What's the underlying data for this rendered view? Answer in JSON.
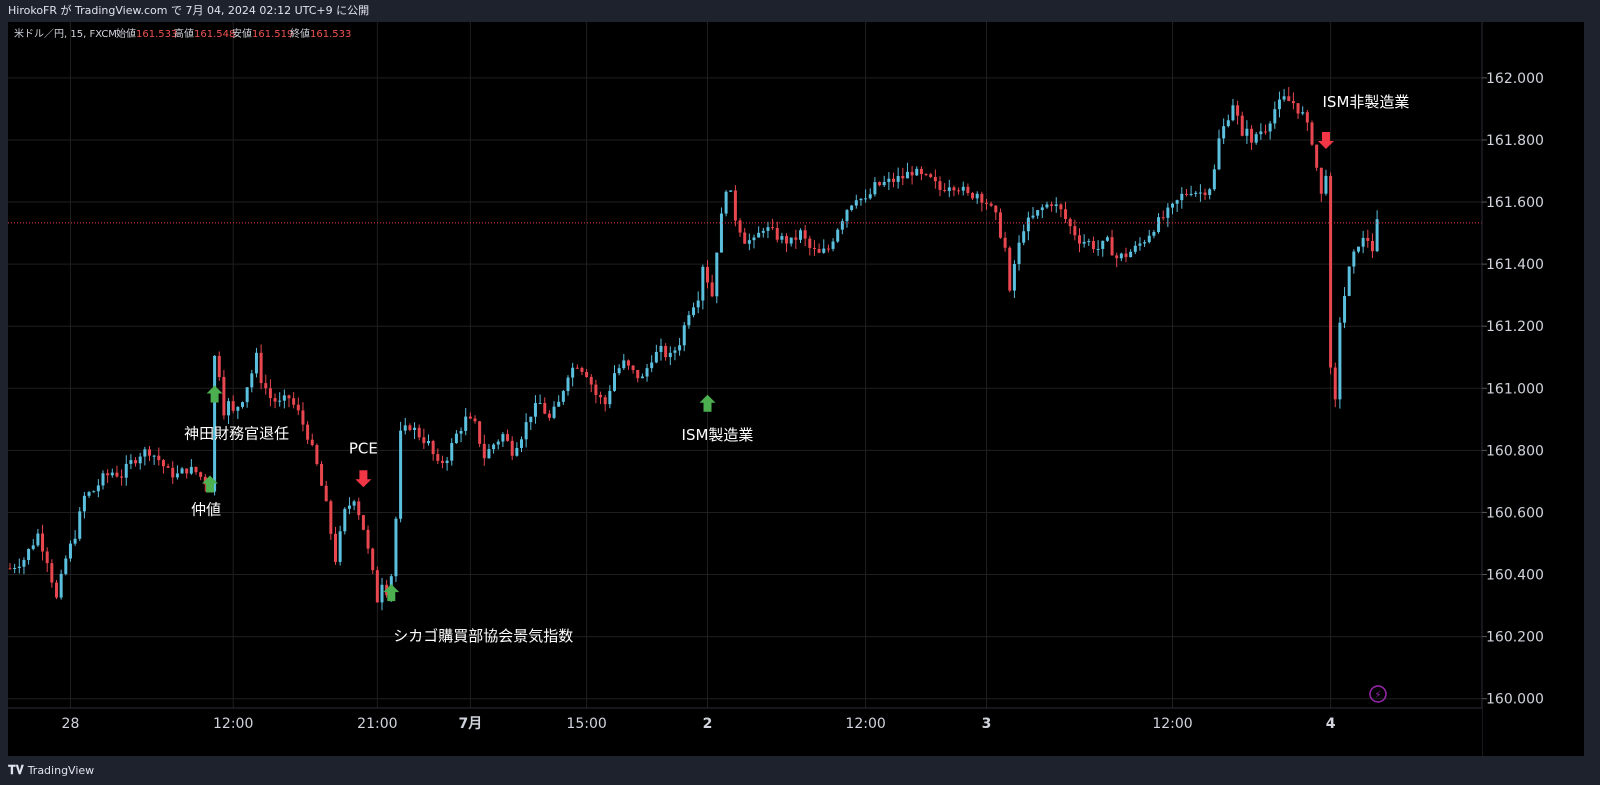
{
  "header": {
    "publish_info": "HirokoFR が TradingView.com で 7月 04, 2024 02:12 UTC+9 に公開"
  },
  "footer": {
    "brand": "TradingView",
    "logo_icon": "tradingview-logo-icon"
  },
  "legend": {
    "symbol": "米ドル／円, 15, FXCM",
    "items": [
      {
        "label": "始値",
        "value": "161.533"
      },
      {
        "label": "高値",
        "value": "161.548"
      },
      {
        "label": "安値",
        "value": "161.519"
      },
      {
        "label": "終値",
        "value": "161.533"
      }
    ]
  },
  "colors": {
    "up": "#26a69a",
    "down": "#ef5350",
    "up_candle": "#5bc0de",
    "down_candle": "#e8474f",
    "arrow_up": "#4caf50",
    "arrow_down": "#f23645",
    "last_price_line": "#f23645",
    "grid": "#1f1f1f",
    "background": "#000000",
    "axis_text": "#d1d4dc",
    "flash_icon": "#9c27b0"
  },
  "chart_data": {
    "type": "candlestick",
    "title": "",
    "ylim": [
      159.97,
      162.18
    ],
    "y_ticks": [
      "162.000",
      "161.800",
      "161.600",
      "161.400",
      "161.200",
      "161.000",
      "160.800",
      "160.600",
      "160.400",
      "160.200",
      "160.000"
    ],
    "x_ticks": [
      "28",
      "12:00",
      "21:00",
      "7月",
      "15:00",
      "2",
      "12:00",
      "3",
      "12:00",
      "4"
    ],
    "last_price": 161.533,
    "price_path": [
      [
        0,
        160.42
      ],
      [
        3,
        160.45
      ],
      [
        6,
        160.53
      ],
      [
        8,
        160.45
      ],
      [
        10,
        160.32
      ],
      [
        12,
        160.45
      ],
      [
        14,
        160.53
      ],
      [
        16,
        160.65
      ],
      [
        18,
        160.67
      ],
      [
        20,
        160.71
      ],
      [
        22,
        160.73
      ],
      [
        24,
        160.72
      ],
      [
        26,
        160.76
      ],
      [
        28,
        160.79
      ],
      [
        30,
        160.8
      ],
      [
        32,
        160.77
      ],
      [
        34,
        160.73
      ],
      [
        36,
        160.72
      ],
      [
        38,
        160.74
      ],
      [
        40,
        160.73
      ],
      [
        42,
        160.7
      ],
      [
        43,
        160.68
      ],
      [
        44,
        161.1
      ],
      [
        45,
        161.05
      ],
      [
        46,
        160.93
      ],
      [
        47,
        160.95
      ],
      [
        48,
        160.92
      ],
      [
        50,
        160.97
      ],
      [
        52,
        161.05
      ],
      [
        53,
        161.1
      ],
      [
        54,
        161.03
      ],
      [
        56,
        160.97
      ],
      [
        58,
        160.95
      ],
      [
        60,
        160.97
      ],
      [
        62,
        160.92
      ],
      [
        64,
        160.85
      ],
      [
        66,
        160.75
      ],
      [
        68,
        160.62
      ],
      [
        70,
        160.45
      ],
      [
        72,
        160.6
      ],
      [
        74,
        160.65
      ],
      [
        76,
        160.55
      ],
      [
        78,
        160.4
      ],
      [
        79,
        160.32
      ],
      [
        80,
        160.38
      ],
      [
        81,
        160.35
      ],
      [
        82,
        160.4
      ],
      [
        83,
        160.58
      ],
      [
        84,
        160.85
      ],
      [
        86,
        160.88
      ],
      [
        88,
        160.85
      ],
      [
        90,
        160.82
      ],
      [
        92,
        160.75
      ],
      [
        94,
        160.78
      ],
      [
        96,
        160.85
      ],
      [
        98,
        160.9
      ],
      [
        100,
        160.88
      ],
      [
        102,
        160.78
      ],
      [
        104,
        160.82
      ],
      [
        106,
        160.85
      ],
      [
        108,
        160.8
      ],
      [
        110,
        160.85
      ],
      [
        112,
        160.92
      ],
      [
        114,
        160.95
      ],
      [
        116,
        160.9
      ],
      [
        118,
        160.95
      ],
      [
        120,
        161.05
      ],
      [
        122,
        161.08
      ],
      [
        124,
        161.05
      ],
      [
        126,
        160.98
      ],
      [
        128,
        160.95
      ],
      [
        130,
        161.05
      ],
      [
        132,
        161.08
      ],
      [
        134,
        161.05
      ],
      [
        136,
        161.03
      ],
      [
        138,
        161.1
      ],
      [
        140,
        161.12
      ],
      [
        142,
        161.1
      ],
      [
        144,
        161.15
      ],
      [
        146,
        161.25
      ],
      [
        148,
        161.3
      ],
      [
        149,
        161.4
      ],
      [
        150,
        161.35
      ],
      [
        151,
        161.3
      ],
      [
        152,
        161.45
      ],
      [
        153,
        161.55
      ],
      [
        154,
        161.65
      ],
      [
        155,
        161.62
      ],
      [
        156,
        161.55
      ],
      [
        158,
        161.48
      ],
      [
        160,
        161.47
      ],
      [
        162,
        161.52
      ],
      [
        164,
        161.5
      ],
      [
        166,
        161.48
      ],
      [
        168,
        161.47
      ],
      [
        170,
        161.5
      ],
      [
        172,
        161.45
      ],
      [
        174,
        161.43
      ],
      [
        176,
        161.45
      ],
      [
        178,
        161.52
      ],
      [
        180,
        161.58
      ],
      [
        182,
        161.62
      ],
      [
        184,
        161.6
      ],
      [
        186,
        161.65
      ],
      [
        188,
        161.66
      ],
      [
        190,
        161.67
      ],
      [
        192,
        161.68
      ],
      [
        194,
        161.7
      ],
      [
        196,
        161.68
      ],
      [
        198,
        161.67
      ],
      [
        200,
        161.64
      ],
      [
        202,
        161.66
      ],
      [
        204,
        161.65
      ],
      [
        206,
        161.62
      ],
      [
        208,
        161.63
      ],
      [
        210,
        161.6
      ],
      [
        212,
        161.55
      ],
      [
        214,
        161.45
      ],
      [
        215,
        161.3
      ],
      [
        216,
        161.4
      ],
      [
        218,
        161.52
      ],
      [
        220,
        161.55
      ],
      [
        222,
        161.58
      ],
      [
        224,
        161.6
      ],
      [
        226,
        161.57
      ],
      [
        228,
        161.52
      ],
      [
        230,
        161.48
      ],
      [
        232,
        161.47
      ],
      [
        234,
        161.45
      ],
      [
        236,
        161.47
      ],
      [
        238,
        161.42
      ],
      [
        240,
        161.43
      ],
      [
        242,
        161.45
      ],
      [
        244,
        161.48
      ],
      [
        246,
        161.52
      ],
      [
        248,
        161.55
      ],
      [
        250,
        161.58
      ],
      [
        252,
        161.62
      ],
      [
        254,
        161.64
      ],
      [
        256,
        161.63
      ],
      [
        258,
        161.65
      ],
      [
        259,
        161.7
      ],
      [
        260,
        161.8
      ],
      [
        262,
        161.88
      ],
      [
        263,
        161.92
      ],
      [
        264,
        161.87
      ],
      [
        265,
        161.8
      ],
      [
        266,
        161.85
      ],
      [
        267,
        161.78
      ],
      [
        268,
        161.82
      ],
      [
        270,
        161.84
      ],
      [
        272,
        161.9
      ],
      [
        274,
        161.93
      ],
      [
        276,
        161.92
      ],
      [
        278,
        161.88
      ],
      [
        280,
        161.8
      ],
      [
        282,
        161.62
      ],
      [
        283,
        161.7
      ],
      [
        284,
        161.05
      ],
      [
        285,
        160.95
      ],
      [
        286,
        161.22
      ],
      [
        287,
        161.3
      ],
      [
        288,
        161.38
      ],
      [
        290,
        161.47
      ],
      [
        292,
        161.48
      ],
      [
        293,
        161.45
      ],
      [
        294,
        161.53
      ]
    ]
  },
  "annotations": [
    {
      "label": "仲値",
      "direction": "up",
      "x": 43,
      "y": 160.69
    },
    {
      "label": "神田財務官退任",
      "direction": "up",
      "x": 44,
      "y": 160.98
    },
    {
      "label": "PCE",
      "direction": "down",
      "x": 76,
      "y": 160.71
    },
    {
      "label": "シカゴ購買部協会景気指数",
      "direction": "up",
      "x": 82,
      "y": 160.34
    },
    {
      "label": "ISM製造業",
      "direction": "up",
      "x": 150,
      "y": 160.95
    },
    {
      "label": "ISM非製造業",
      "direction": "down",
      "x": 283,
      "y": 161.8
    }
  ]
}
